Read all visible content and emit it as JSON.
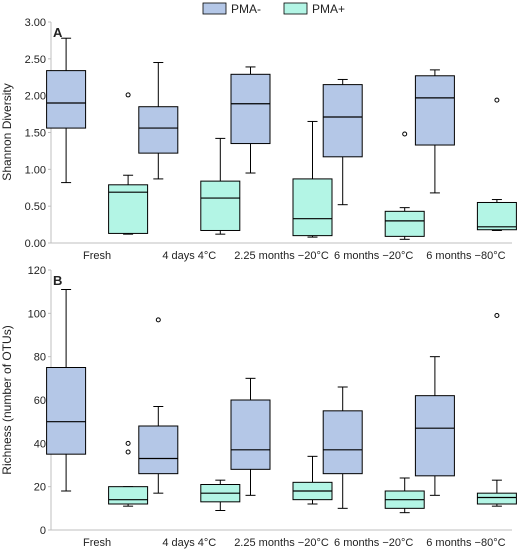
{
  "legend": {
    "position": "top-center",
    "items": [
      {
        "label": "PMA-",
        "color": "#b4c7e7"
      },
      {
        "label": "PMA+",
        "color": "#b3f5e5"
      }
    ]
  },
  "colors": {
    "stroke": "#000000",
    "axis": "#bfbfbf"
  },
  "chart_data": [
    {
      "type": "boxplot",
      "panel_label": "A",
      "ylabel": "Shannon Diversity",
      "ylim": [
        0,
        3
      ],
      "yticks": [
        "0.00",
        "0.50",
        "1.00",
        "1.50",
        "2.00",
        "2.50",
        "3.00"
      ],
      "categories": [
        "Fresh",
        "4 days 4°C",
        "2.25 months −20°C",
        "6 months −20°C",
        "6 months −80°C"
      ],
      "grid": false,
      "series": [
        {
          "name": "PMA-",
          "boxes": [
            {
              "min": 0.82,
              "q1": 1.56,
              "median": 1.9,
              "q3": 2.34,
              "max": 2.78,
              "outliers": []
            },
            {
              "min": 0.87,
              "q1": 1.22,
              "median": 1.56,
              "q3": 1.85,
              "max": 2.45,
              "outliers": []
            },
            {
              "min": 0.95,
              "q1": 1.35,
              "median": 1.89,
              "q3": 2.29,
              "max": 2.39,
              "outliers": []
            },
            {
              "min": 0.52,
              "q1": 1.17,
              "median": 1.71,
              "q3": 2.15,
              "max": 2.22,
              "outliers": []
            },
            {
              "min": 0.68,
              "q1": 1.33,
              "median": 1.97,
              "q3": 2.27,
              "max": 2.35,
              "outliers": []
            }
          ]
        },
        {
          "name": "PMA+",
          "boxes": [
            {
              "min": 0.12,
              "q1": 0.13,
              "median": 0.69,
              "q3": 0.79,
              "max": 0.92,
              "outliers": [
                2.01
              ]
            },
            {
              "min": 0.12,
              "q1": 0.17,
              "median": 0.61,
              "q3": 0.84,
              "max": 1.42,
              "outliers": []
            },
            {
              "min": 0.08,
              "q1": 0.1,
              "median": 0.33,
              "q3": 0.87,
              "max": 1.65,
              "outliers": []
            },
            {
              "min": 0.05,
              "q1": 0.09,
              "median": 0.3,
              "q3": 0.43,
              "max": 0.48,
              "outliers": [
                1.48
              ]
            },
            {
              "min": 0.17,
              "q1": 0.18,
              "median": 0.22,
              "q3": 0.55,
              "max": 0.59,
              "outliers": [
                1.94
              ]
            }
          ]
        }
      ]
    },
    {
      "type": "boxplot",
      "panel_label": "B",
      "ylabel": "Richness (number of OTUs)",
      "ylim": [
        0,
        120
      ],
      "yticks": [
        "0",
        "20",
        "40",
        "60",
        "80",
        "100",
        "120"
      ],
      "categories": [
        "Fresh",
        "4 days 4°C",
        "2.25 months −20°C",
        "6 months −20°C",
        "6 months −80°C"
      ],
      "grid": false,
      "series": [
        {
          "name": "PMA-",
          "boxes": [
            {
              "min": 18,
              "q1": 35,
              "median": 50,
              "q3": 75,
              "max": 111,
              "outliers": []
            },
            {
              "min": 17,
              "q1": 26,
              "median": 33,
              "q3": 48,
              "max": 57,
              "outliers": [
                97
              ]
            },
            {
              "min": 16,
              "q1": 28,
              "median": 37,
              "q3": 60,
              "max": 70,
              "outliers": []
            },
            {
              "min": 10,
              "q1": 26,
              "median": 37,
              "q3": 55,
              "max": 66,
              "outliers": []
            },
            {
              "min": 16,
              "q1": 25,
              "median": 47,
              "q3": 62,
              "max": 80,
              "outliers": []
            }
          ]
        },
        {
          "name": "PMA+",
          "boxes": [
            {
              "min": 11,
              "q1": 12,
              "median": 14,
              "q3": 20,
              "max": 20,
              "outliers": [
                36,
                40
              ]
            },
            {
              "min": 9,
              "q1": 13,
              "median": 17,
              "q3": 21,
              "max": 23,
              "outliers": []
            },
            {
              "min": 12,
              "q1": 14,
              "median": 18,
              "q3": 22,
              "max": 34,
              "outliers": []
            },
            {
              "min": 8,
              "q1": 10,
              "median": 14,
              "q3": 18,
              "max": 24,
              "outliers": []
            },
            {
              "min": 11,
              "q1": 12,
              "median": 15,
              "q3": 17,
              "max": 23,
              "outliers": [
                99
              ]
            }
          ]
        }
      ]
    }
  ]
}
